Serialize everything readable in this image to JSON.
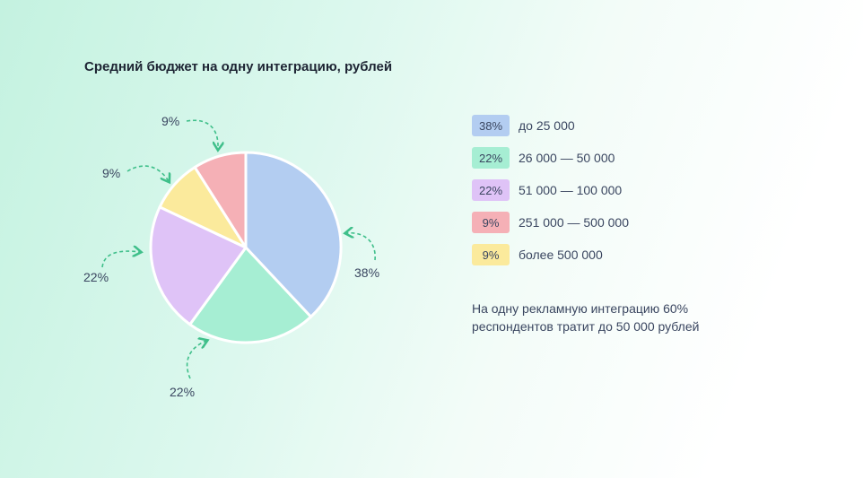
{
  "title": "Средний бюджет на одну интеграцию, рублей",
  "chart_data": {
    "type": "pie",
    "title": "Средний бюджет на одну интеграцию, рублей",
    "slices": [
      {
        "label": "до 25 000",
        "value": 38,
        "percent_label": "38%",
        "color": "#b3cdf1",
        "badge_color": "#b3cdf1"
      },
      {
        "label": "26 000 — 50 000",
        "value": 22,
        "percent_label": "22%",
        "color": "#a6eed3",
        "badge_color": "#a6eed3"
      },
      {
        "label": "51 000 — 100 000",
        "value": 22,
        "percent_label": "22%",
        "color": "#dfc3f7",
        "badge_color": "#dfc3f7"
      },
      {
        "label": "251 000 — 500 000",
        "value": 9,
        "percent_label": "9%",
        "color": "#f5b0b6",
        "badge_color": "#f5b0b6"
      },
      {
        "label": "более 500 000",
        "value": 9,
        "percent_label": "9%",
        "color": "#fbea9c",
        "badge_color": "#fbea9c"
      }
    ],
    "slice_order_clockwise_from_top": [
      "до 25 000",
      "26 000 — 50 000",
      "51 000 — 100 000",
      "более 500 000",
      "251 000 — 500 000"
    ],
    "legend_position": "right"
  },
  "note": {
    "line1": "На одну рекламную интеграцию 60%",
    "line2": "респондентов тратит до 50 000 рублей"
  },
  "colors": {
    "arrow": "#3fbf8a",
    "text": "#3a4660"
  }
}
